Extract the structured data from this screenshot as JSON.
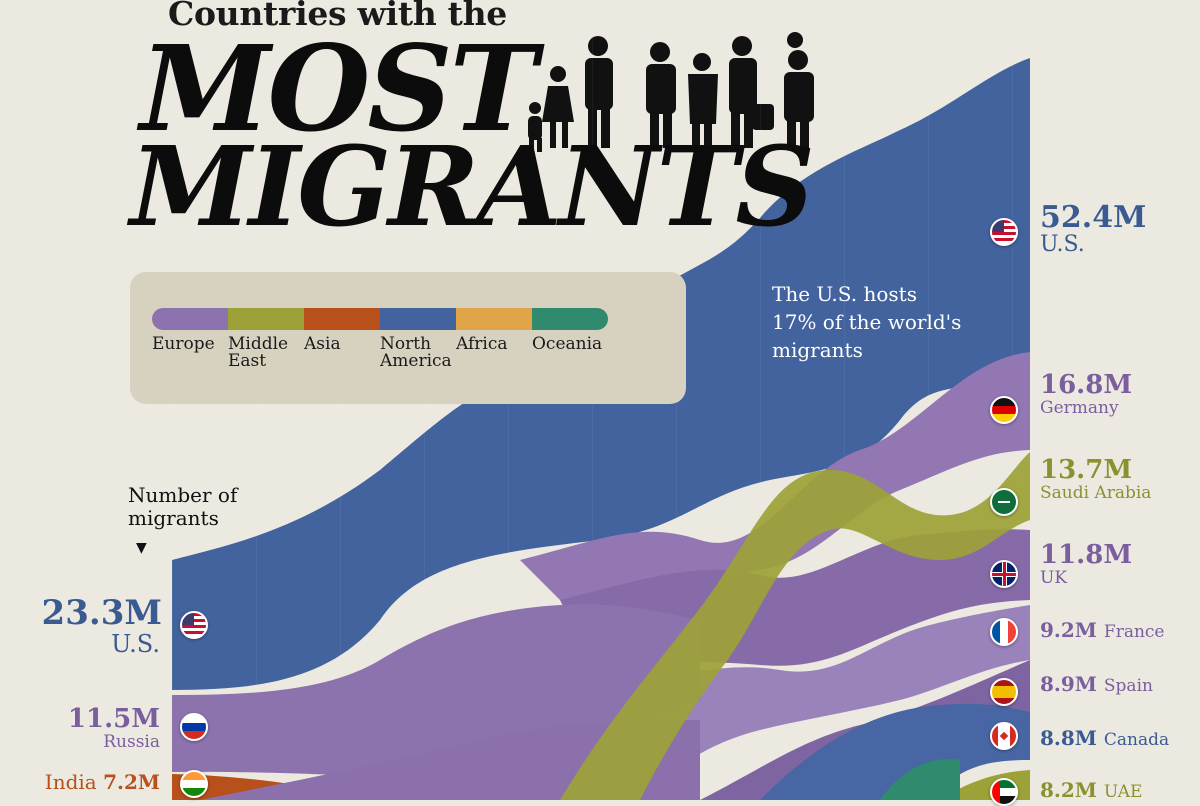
{
  "header": {
    "subtitle": "Countries with the",
    "title_line1": "MOST",
    "title_line2": "MIGRANTS"
  },
  "legend": {
    "items": [
      {
        "label": "Europe",
        "color": "#8D73AE"
      },
      {
        "label": "Middle\nEast",
        "color": "#9CA237"
      },
      {
        "label": "Asia",
        "color": "#B7501B"
      },
      {
        "label": "North\nAmerica",
        "color": "#43639E"
      },
      {
        "label": "Africa",
        "color": "#E1A449"
      },
      {
        "label": "Oceania",
        "color": "#2F8A6E"
      }
    ]
  },
  "annotation": {
    "text": "The U.S. hosts\n17% of the world's\nmigrants"
  },
  "y_axis_label": "Number of\nmigrants",
  "chart_data": {
    "type": "area",
    "title": "Countries with the MOST MIGRANTS",
    "ylabel": "Number of migrants",
    "start_labels": [
      {
        "country": "U.S.",
        "value": "23.3M",
        "region": "North America",
        "flag": "us-flag-icon"
      },
      {
        "country": "Russia",
        "value": "11.5M",
        "region": "Europe",
        "flag": "russia-flag-icon"
      },
      {
        "country": "India",
        "value": "7.2M",
        "region": "Asia",
        "flag": "india-flag-icon"
      }
    ],
    "end_labels": [
      {
        "country": "U.S.",
        "value": "52.4M",
        "region": "North America",
        "flag": "us-flag-icon"
      },
      {
        "country": "Germany",
        "value": "16.8M",
        "region": "Europe",
        "flag": "germany-flag-icon"
      },
      {
        "country": "Saudi Arabia",
        "value": "13.7M",
        "region": "Middle East",
        "flag": "saudi-arabia-flag-icon"
      },
      {
        "country": "UK",
        "value": "11.8M",
        "region": "Europe",
        "flag": "uk-flag-icon"
      },
      {
        "country": "France",
        "value": "9.2M",
        "region": "Europe",
        "flag": "france-flag-icon"
      },
      {
        "country": "Spain",
        "value": "8.9M",
        "region": "Europe",
        "flag": "spain-flag-icon"
      },
      {
        "country": "Canada",
        "value": "8.8M",
        "region": "North America",
        "flag": "canada-flag-icon"
      },
      {
        "country": "UAE",
        "value": "8.2M",
        "region": "Middle East",
        "flag": "uae-flag-icon"
      }
    ],
    "series": [
      {
        "name": "U.S.",
        "start": 23.3,
        "end": 52.4
      },
      {
        "name": "Russia",
        "start": 11.5
      },
      {
        "name": "India",
        "start": 7.2
      },
      {
        "name": "Germany",
        "end": 16.8
      },
      {
        "name": "Saudi Arabia",
        "end": 13.7
      },
      {
        "name": "UK",
        "end": 11.8
      },
      {
        "name": "France",
        "end": 9.2
      },
      {
        "name": "Spain",
        "end": 8.9
      },
      {
        "name": "Canada",
        "end": 8.8
      },
      {
        "name": "UAE",
        "end": 8.2
      }
    ],
    "grid": true
  }
}
